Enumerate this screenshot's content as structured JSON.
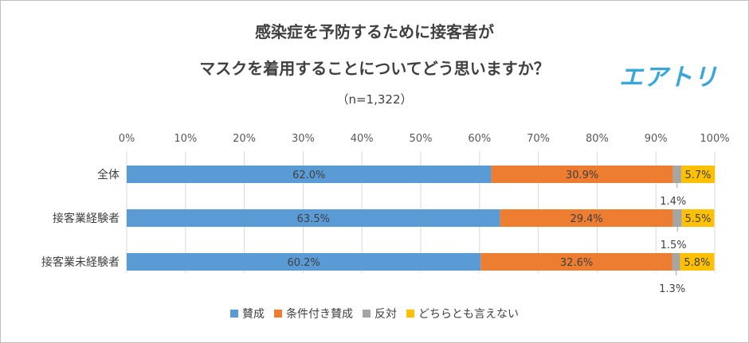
{
  "title_line1": "感染症を予防するために接客者が",
  "title_line2": "マスクを着用することについてどう思いますか？",
  "subtitle": "（n=1,322）",
  "logo": "エアトリ",
  "chart_data": {
    "type": "bar",
    "orientation": "horizontal",
    "stacked": true,
    "xlim": [
      0,
      100
    ],
    "x_ticks": [
      "0%",
      "10%",
      "20%",
      "30%",
      "40%",
      "50%",
      "60%",
      "70%",
      "80%",
      "90%",
      "100%"
    ],
    "categories": [
      "全体",
      "接客業経験者",
      "接客業未経験者"
    ],
    "series": [
      {
        "name": "賛成",
        "color": "#5b9bd5",
        "values": [
          62.0,
          63.5,
          60.2
        ],
        "labels": [
          "62.0%",
          "63.5%",
          "60.2%"
        ]
      },
      {
        "name": "条件付き賛成",
        "color": "#ed7d31",
        "values": [
          30.9,
          29.4,
          32.6
        ],
        "labels": [
          "30.9%",
          "29.4%",
          "32.6%"
        ]
      },
      {
        "name": "反対",
        "color": "#a5a5a5",
        "values": [
          1.4,
          1.5,
          1.3
        ],
        "labels": [
          "1.4%",
          "1.5%",
          "1.3%"
        ]
      },
      {
        "name": "どちらとも言えない",
        "color": "#ffc000",
        "values": [
          5.7,
          5.5,
          5.8
        ],
        "labels": [
          "5.7%",
          "5.5%",
          "5.8%"
        ]
      }
    ],
    "legend_position": "bottom"
  }
}
